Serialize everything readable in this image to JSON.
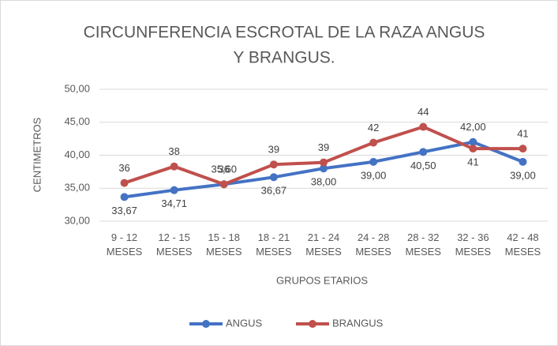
{
  "chart_data": {
    "type": "line",
    "title": [
      "CIRCUNFERENCIA ESCROTAL DE LA RAZA  ANGUS",
      "Y BRANGUS."
    ],
    "x_label": "GRUPOS ETARIOS",
    "y_label": "CENTIMETROS",
    "categories": [
      "9 - 12 MESES",
      "12 - 15 MESES",
      "15 - 18 MESES",
      "18 - 21 MESES",
      "21 - 24 MESES",
      "24 - 28 MESES",
      "28 - 32 MESES",
      "32 - 36 MESES",
      "42 - 48 MESES"
    ],
    "series": [
      {
        "name": "ANGUS",
        "color": "#4472c4",
        "values": [
          33.67,
          34.71,
          35.6,
          36.67,
          38.0,
          39.0,
          40.5,
          42.0,
          39.0
        ],
        "value_labels": [
          "33,67",
          "34,71",
          "35,60",
          "36,67",
          "38,00",
          "39,00",
          "40,50",
          "42,00",
          "39,00"
        ]
      },
      {
        "name": "BRANGUS",
        "color": "#c0504d",
        "values": [
          35.8,
          38.3,
          35.6,
          38.6,
          38.9,
          41.9,
          44.3,
          41.0,
          41.0
        ],
        "value_labels": [
          "36",
          "38",
          "36",
          "39",
          "39",
          "42",
          "44",
          "41",
          "41"
        ]
      }
    ],
    "ylim": [
      30,
      50
    ],
    "yticks": [
      {
        "value": 30,
        "label": "30,00"
      },
      {
        "value": 35,
        "label": "35,00"
      },
      {
        "value": 40,
        "label": "40,00"
      },
      {
        "value": 45,
        "label": "45,00"
      },
      {
        "value": 50,
        "label": "50,00"
      }
    ],
    "grid": true,
    "legend": "bottom"
  }
}
